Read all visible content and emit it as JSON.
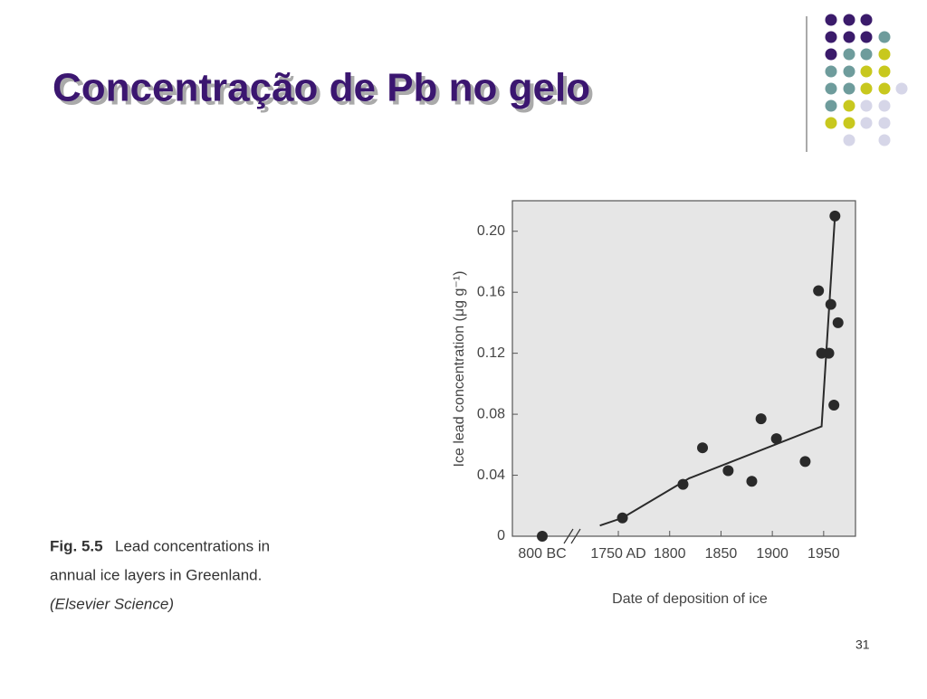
{
  "slide": {
    "title": "Concentração de Pb no gelo",
    "page_number": "31"
  },
  "figure": {
    "label": "Fig. 5.5",
    "caption": [
      "Lead concentrations in",
      "annual ice layers in Greenland.",
      "(Elsevier Science)"
    ]
  },
  "chart_data": {
    "type": "scatter",
    "x_label": "Date of deposition of ice",
    "y_label": "Ice lead concentration (μg g⁻¹)",
    "xlim": [
      -830,
      1981
    ],
    "axis_break": [
      -770,
      1705
    ],
    "xticks": [
      {
        "value": -800,
        "label": "800 BC"
      },
      {
        "value": 1750,
        "label": "1750 AD"
      },
      1800,
      1850,
      1900,
      1950
    ],
    "ylim": [
      0,
      0.22
    ],
    "yticks": [
      0,
      0.04,
      0.08,
      0.12,
      0.16,
      {
        "value": 0.2,
        "label": "0.20"
      }
    ],
    "series": [
      {
        "style": "points",
        "color": "#2a2a2a",
        "x": [
          -800,
          1754,
          1813,
          1832,
          1857,
          1880,
          1889,
          1904,
          1932,
          1945,
          1948,
          1955,
          1957,
          1960,
          1964,
          1961
        ],
        "values": [
          0.0,
          0.012,
          0.034,
          0.058,
          0.043,
          0.036,
          0.077,
          0.064,
          0.049,
          0.161,
          0.12,
          0.12,
          0.152,
          0.086,
          0.14,
          0.21
        ]
      },
      {
        "style": "line",
        "color": "#2a2a2a",
        "x": [
          1732,
          1754,
          1819,
          1948,
          1961
        ],
        "values": [
          0.007,
          0.012,
          0.038,
          0.072,
          0.21
        ]
      }
    ]
  }
}
